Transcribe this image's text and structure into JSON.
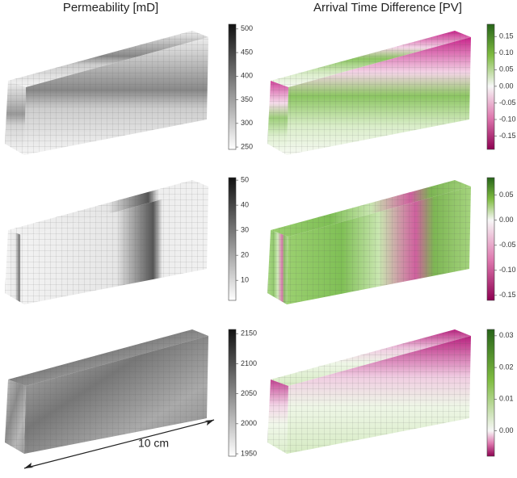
{
  "titles": {
    "permeability": "Permeability [mD]",
    "arrival": "Arrival Time Difference [PV]"
  },
  "scale_bar": "10 cm",
  "rows": [
    {
      "permeability": {
        "lim": [
          245,
          510
        ],
        "ticks": [
          250,
          300,
          350,
          400,
          450,
          500
        ]
      },
      "arrival": {
        "lim": [
          -0.19,
          0.187
        ],
        "ticks": [
          0.15,
          {
            "value": 0.1,
            "label": "0.10"
          },
          0.05,
          {
            "value": 0,
            "label": "0.00"
          },
          -0.05,
          {
            "value": -0.1,
            "label": "-0.10"
          },
          -0.15
        ]
      }
    },
    {
      "permeability": {
        "lim": [
          2,
          51
        ],
        "ticks": [
          10,
          20,
          30,
          40,
          50
        ]
      },
      "arrival": {
        "lim": [
          -0.16,
          0.085
        ],
        "ticks": [
          0.05,
          {
            "value": 0,
            "label": "0.00"
          },
          -0.05,
          {
            "value": -0.1,
            "label": "-0.10"
          },
          -0.15
        ]
      }
    },
    {
      "permeability": {
        "lim": [
          1946,
          2157
        ],
        "ticks": [
          1950,
          2000,
          2050,
          2100,
          2150
        ]
      },
      "arrival": {
        "lim": [
          -0.008,
          0.032
        ],
        "ticks": [
          {
            "value": 0,
            "label": "0.00"
          },
          0.01,
          0.02,
          0.03
        ]
      }
    }
  ]
}
